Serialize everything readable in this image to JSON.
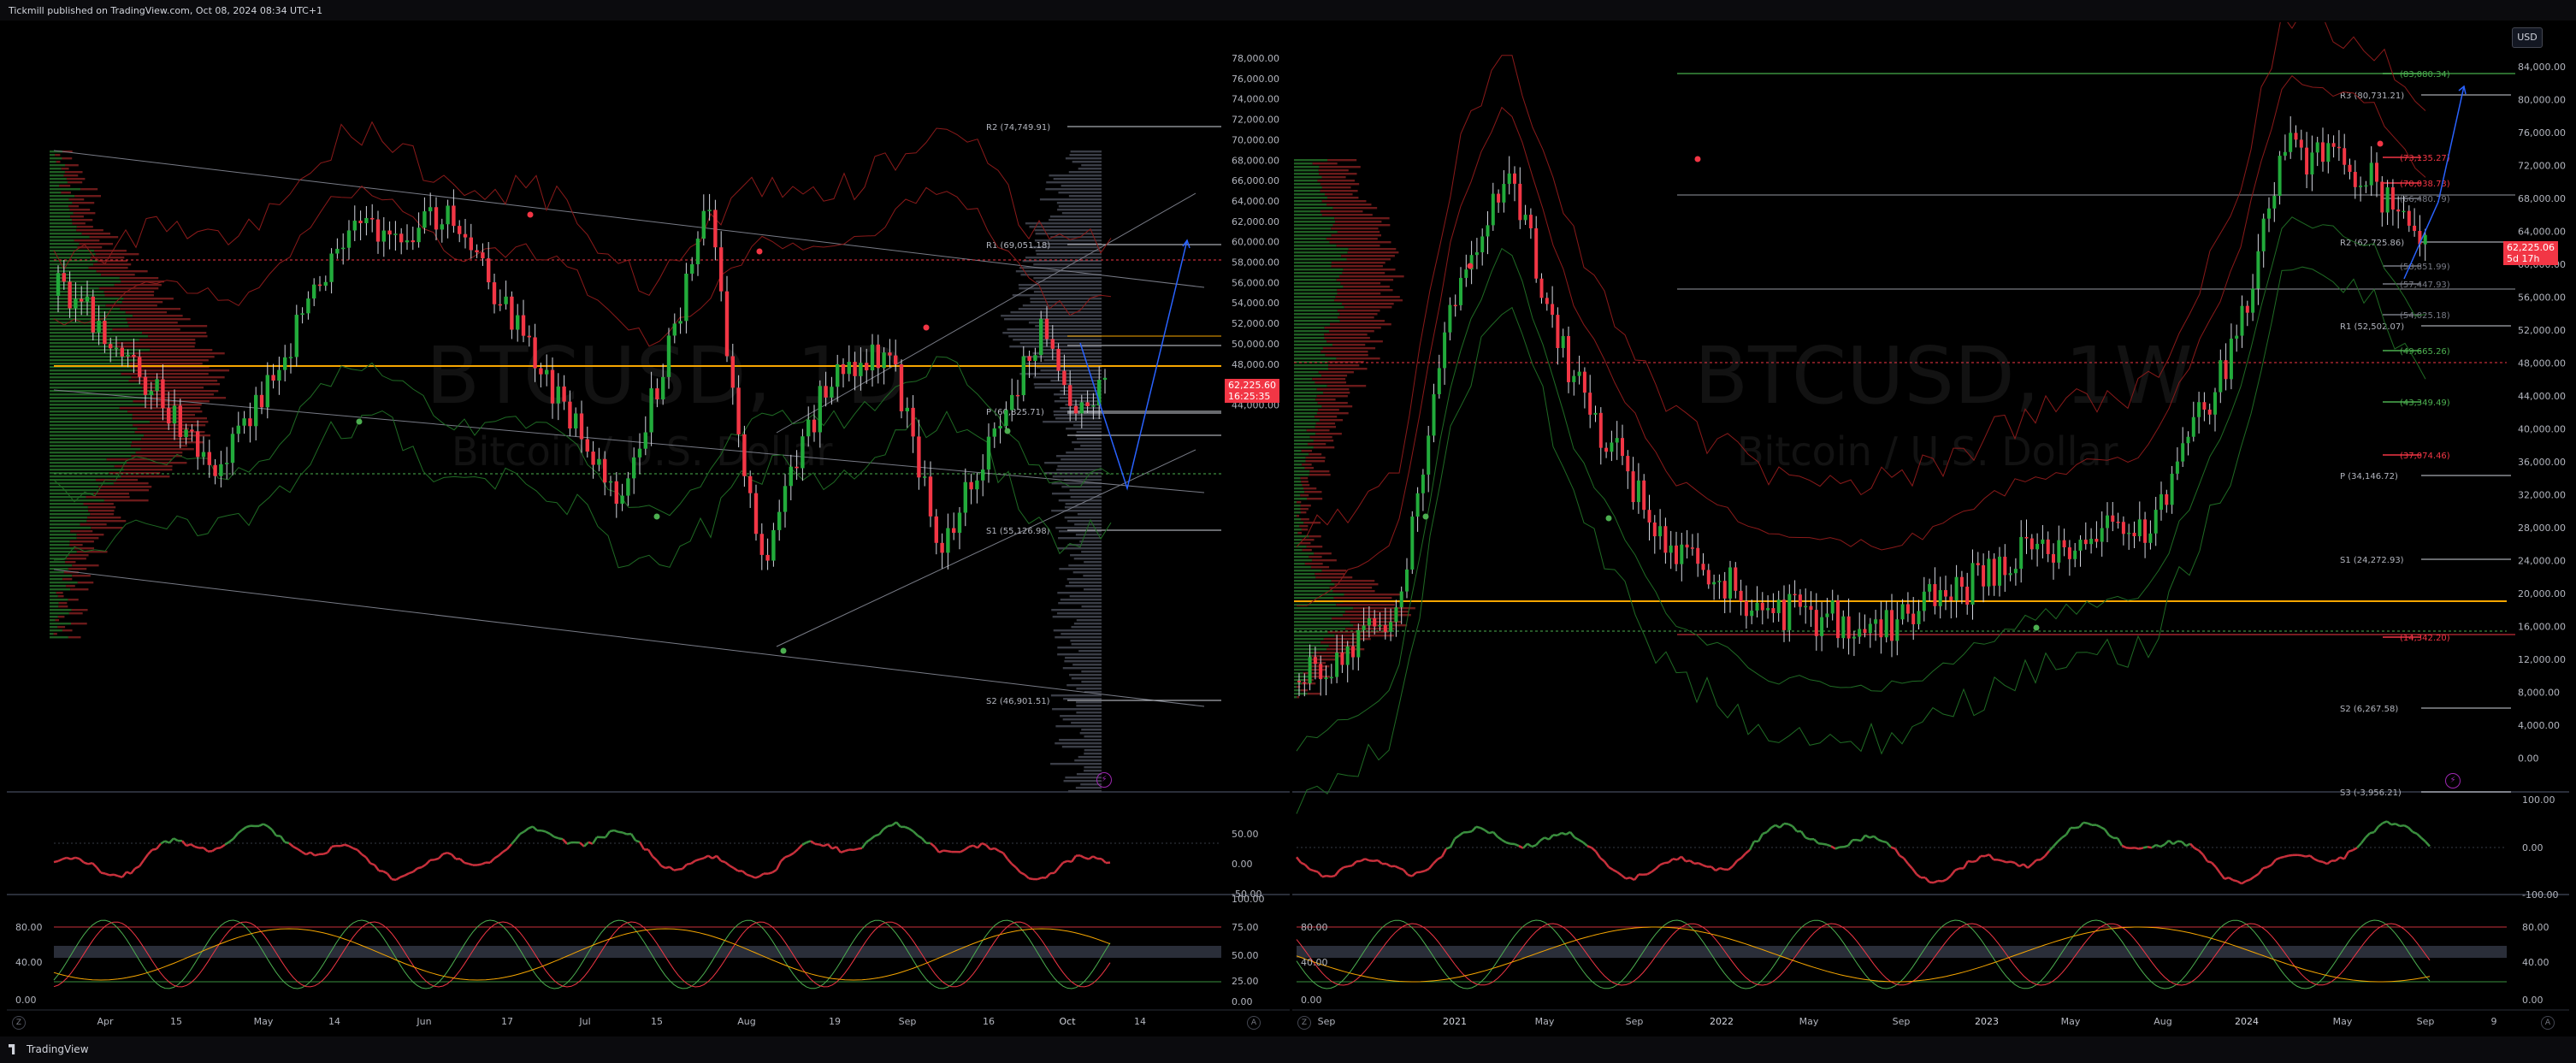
{
  "header": {
    "publisher_text": "Tickmill published on TradingView.com, Oct 08, 2024 08:34 UTC+1"
  },
  "footer": {
    "brand": "TradingView"
  },
  "currency_button": "USD",
  "colors": {
    "up": "#22ab3b",
    "down": "#f23645",
    "poc": "#f7a600",
    "bg": "#000000",
    "grid": "#1c1f26"
  },
  "left_chart": {
    "watermark_symbol": "BTCUSD, 1D",
    "watermark_name": "Bitcoin / U.S. Dollar",
    "price_axis": [
      "78,000.00",
      "76,000.00",
      "74,000.00",
      "72,000.00",
      "70,000.00",
      "68,000.00",
      "66,000.00",
      "64,000.00",
      "62,000.00",
      "60,000.00",
      "58,000.00",
      "56,000.00",
      "54,000.00",
      "52,000.00",
      "50,000.00",
      "48,000.00",
      "46,000.00",
      "44,000.00"
    ],
    "last_price": "62,225.60",
    "countdown": "16:25:35",
    "pivot_labels": {
      "r2": "R2 (74,749.91)",
      "r1": "R1 (69,051.18)",
      "p": "P (60,825.71)",
      "s1": "S1 (55,126.98)",
      "s2": "S2 (46,901.51)"
    },
    "time_axis": [
      "Apr",
      "15",
      "May",
      "14",
      "Jun",
      "17",
      "Jul",
      "15",
      "Aug",
      "19",
      "Sep",
      "16",
      "Oct",
      "14"
    ],
    "osc1_axis": [
      "50.00",
      "0.00",
      "-50.00"
    ],
    "osc2_axis_left": [
      "80.00",
      "40.00",
      "0.00"
    ],
    "osc2_axis_right": [
      "100.00",
      "75.00",
      "50.00",
      "25.00",
      "0.00"
    ]
  },
  "right_chart": {
    "watermark_symbol": "BTCUSD, 1W",
    "watermark_name": "Bitcoin / U.S. Dollar",
    "price_axis": [
      "84,000.00",
      "80,000.00",
      "76,000.00",
      "72,000.00",
      "68,000.00",
      "64,000.00",
      "60,000.00",
      "56,000.00",
      "52,000.00",
      "48,000.00",
      "44,000.00",
      "40,000.00",
      "36,000.00",
      "32,000.00",
      "28,000.00",
      "24,000.00",
      "20,000.00",
      "16,000.00",
      "12,000.00",
      "8,000.00",
      "4,000.00",
      "0.00"
    ],
    "last_price": "62,225.06",
    "countdown": "5d 17h",
    "pivot_labels": {
      "r3": "R3 (80,731.21)",
      "r2": "R2 (62,725.86)",
      "r1": "R1 (52,502.07)",
      "p": "P (34,146.72)",
      "s1": "S1 (24,272.93)",
      "s2": "S2 (6,267.58)",
      "s3": "S3 (-3,956.21)"
    },
    "level_labels": {
      "l83": "(83,080.34)",
      "l73": "(73,135.27)",
      "l70": "(70,038.73)",
      "l66": "(66,480.79)",
      "l58": "(58,851.99)",
      "l57": "(57,447.93)",
      "l54": "(54,025.18)",
      "l49": "(49,665.26)",
      "l43": "(43,349.49)",
      "l37": "(37,074.46)",
      "l14": "(14,342.20)"
    },
    "time_axis": [
      "Sep",
      "2021",
      "May",
      "Sep",
      "2022",
      "May",
      "Sep",
      "2023",
      "May",
      "Aug",
      "2024",
      "May",
      "Sep",
      "9"
    ],
    "osc1_axis": [
      "100.00",
      "0.00",
      "-100.00"
    ],
    "osc2_axis_left": [
      "80.00",
      "40.00",
      "0.00"
    ],
    "osc2_axis_right": [
      "80.00",
      "40.00",
      "0.00"
    ]
  }
}
